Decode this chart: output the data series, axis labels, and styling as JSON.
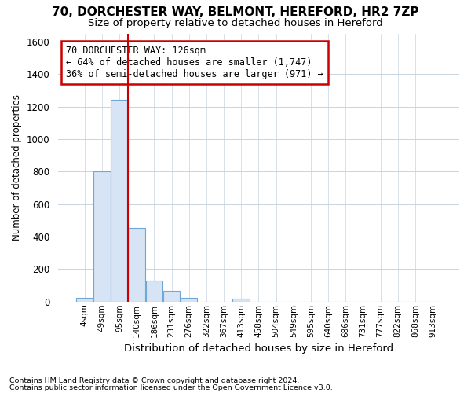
{
  "title_line1": "70, DORCHESTER WAY, BELMONT, HEREFORD, HR2 7ZP",
  "title_line2": "Size of property relative to detached houses in Hereford",
  "xlabel": "Distribution of detached houses by size in Hereford",
  "ylabel": "Number of detached properties",
  "footnote1": "Contains HM Land Registry data © Crown copyright and database right 2024.",
  "footnote2": "Contains public sector information licensed under the Open Government Licence v3.0.",
  "bin_labels": [
    "4sqm",
    "49sqm",
    "95sqm",
    "140sqm",
    "186sqm",
    "231sqm",
    "276sqm",
    "322sqm",
    "367sqm",
    "413sqm",
    "458sqm",
    "504sqm",
    "549sqm",
    "595sqm",
    "640sqm",
    "686sqm",
    "731sqm",
    "777sqm",
    "822sqm",
    "868sqm",
    "913sqm"
  ],
  "bar_heights": [
    25,
    800,
    1240,
    455,
    130,
    65,
    25,
    0,
    0,
    20,
    0,
    0,
    0,
    0,
    0,
    0,
    0,
    0,
    0,
    0,
    0
  ],
  "bar_color": "#d6e4f5",
  "bar_edgecolor": "#6fa8d8",
  "grid_color": "#c8d4e0",
  "vline_x": 2.5,
  "vline_color": "#cc0000",
  "annotation_text": "70 DORCHESTER WAY: 126sqm\n← 64% of detached houses are smaller (1,747)\n36% of semi-detached houses are larger (971) →",
  "annotation_box_color": "#ffffff",
  "annotation_box_edgecolor": "#cc0000",
  "ylim": [
    0,
    1650
  ],
  "yticks": [
    0,
    200,
    400,
    600,
    800,
    1000,
    1200,
    1400,
    1600
  ],
  "background_color": "#ffffff",
  "title_fontsize": 11,
  "subtitle_fontsize": 9.5,
  "annotation_fontsize": 8.5,
  "ylabel_fontsize": 8.5,
  "xlabel_fontsize": 9.5
}
